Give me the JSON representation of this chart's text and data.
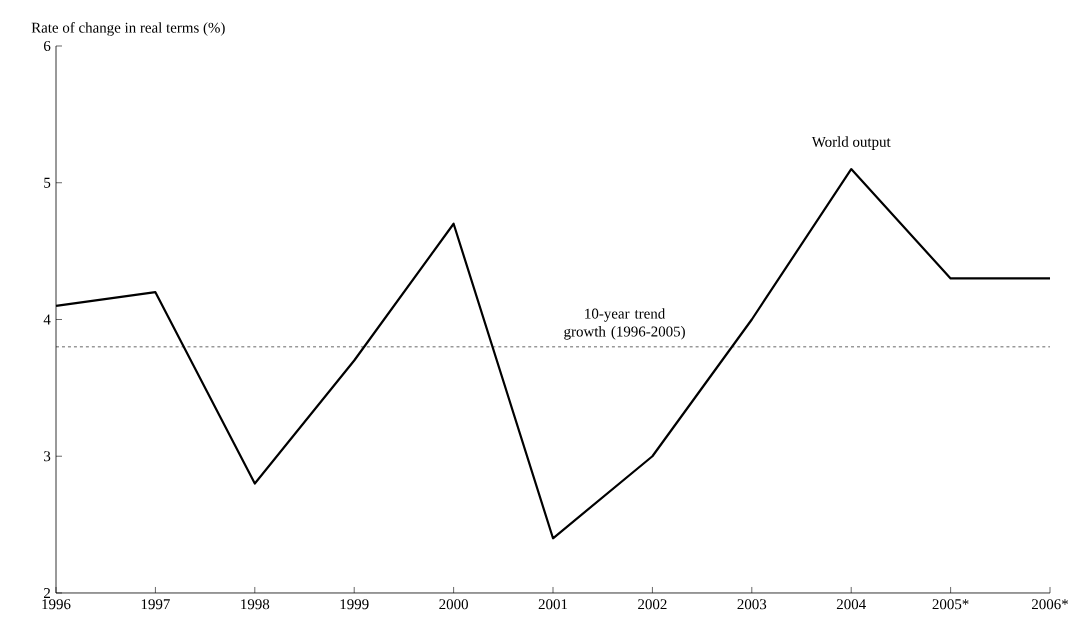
{
  "chart_data": {
    "type": "line",
    "ylabel": "Rate of change in real terms (%)",
    "categories": [
      "1996",
      "1997",
      "1998",
      "1999",
      "2000",
      "2001",
      "2002",
      "2003",
      "2004",
      "2005*",
      "2006*"
    ],
    "series": [
      {
        "name": "World output",
        "color": "#000000",
        "values": [
          4.1,
          4.2,
          2.8,
          3.7,
          4.7,
          2.4,
          3.0,
          4.0,
          5.1,
          4.3,
          4.3
        ]
      }
    ],
    "ylim": [
      2,
      6
    ],
    "yticks": [
      2,
      3,
      4,
      5,
      6
    ],
    "ref_lines": [
      {
        "axis": "y",
        "value": 3.8,
        "label": "10-year trend growth (1996-2005)",
        "color": "#000000",
        "line_style": "dashed"
      }
    ],
    "grid": false,
    "legend": false,
    "marker": "none",
    "line_style": "solid"
  }
}
